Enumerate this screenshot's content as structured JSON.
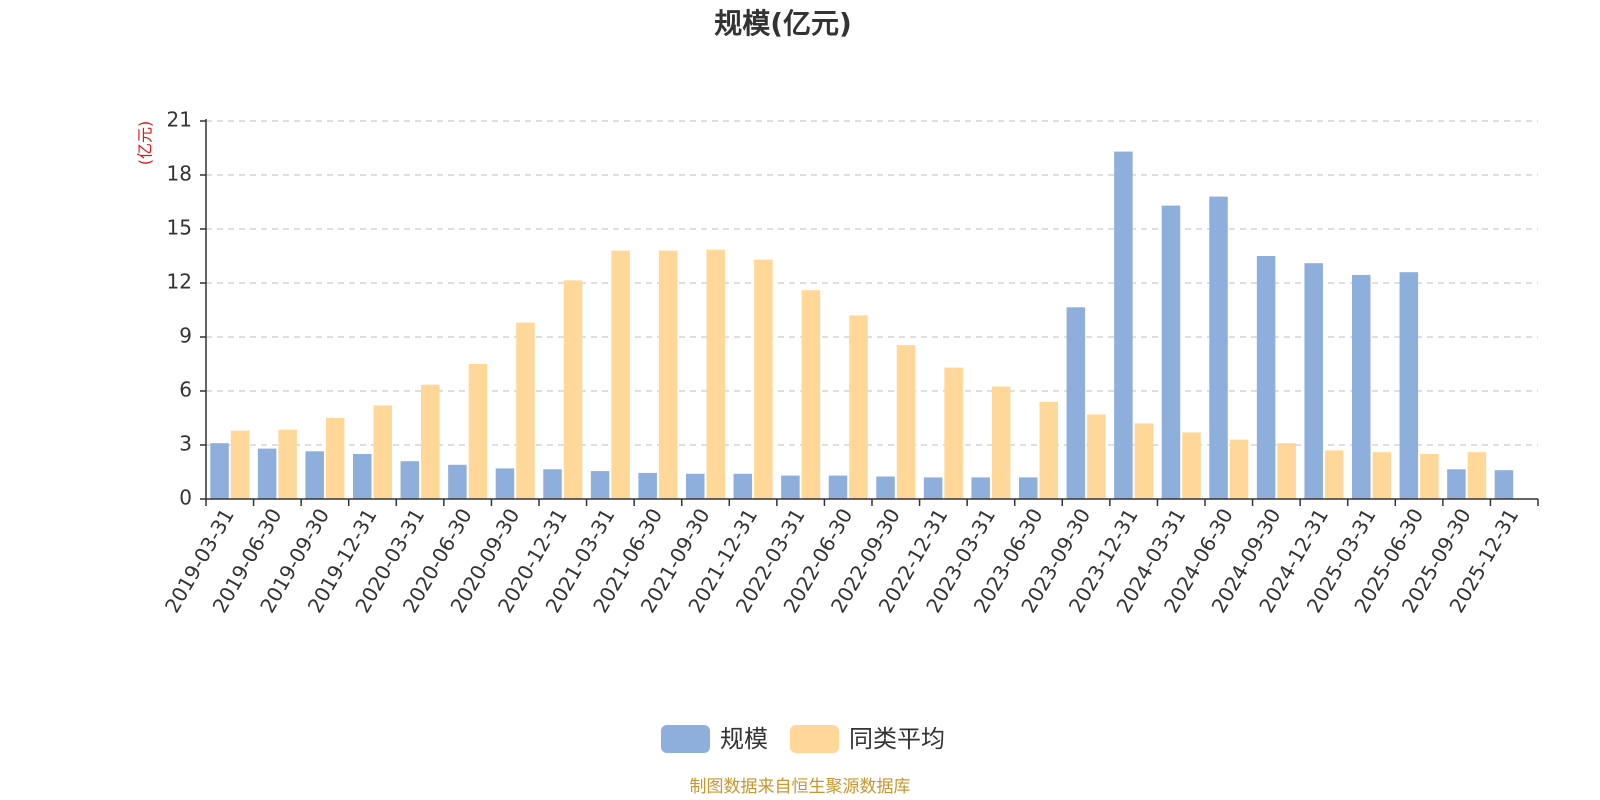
{
  "chart_data": {
    "type": "bar",
    "title": "规模(亿元)",
    "ylabel": "(亿元)",
    "xlabel": "",
    "ylim": [
      0,
      21
    ],
    "yticks": [
      0,
      3,
      6,
      9,
      12,
      15,
      18,
      21
    ],
    "grid": true,
    "legend_position": "bottom",
    "categories": [
      "2019-03-31",
      "2019-06-30",
      "2019-09-30",
      "2019-12-31",
      "2020-03-31",
      "2020-06-30",
      "2020-09-30",
      "2020-12-31",
      "2021-03-31",
      "2021-06-30",
      "2021-09-30",
      "2021-12-31",
      "2022-03-31",
      "2022-06-30",
      "2022-09-30",
      "2022-12-31",
      "2023-03-31",
      "2023-06-30",
      "2023-09-30",
      "2023-12-31",
      "2024-03-31",
      "2024-06-30",
      "2024-09-30",
      "2024-12-31",
      "2025-03-31",
      "2025-06-30",
      "2025-09-30",
      "2025-12-31"
    ],
    "series": [
      {
        "name": "规模",
        "color": "#8eaedb",
        "values": [
          3.1,
          2.8,
          2.65,
          2.5,
          2.1,
          1.9,
          1.7,
          1.65,
          1.55,
          1.45,
          1.4,
          1.4,
          1.3,
          1.3,
          1.25,
          1.2,
          1.2,
          1.2,
          10.65,
          19.3,
          16.3,
          16.8,
          13.5,
          13.1,
          12.45,
          12.6,
          1.65,
          1.6
        ]
      },
      {
        "name": "同类平均",
        "color": "#ffd899",
        "values": [
          3.8,
          3.85,
          4.5,
          5.2,
          6.35,
          7.5,
          9.8,
          12.15,
          13.8,
          13.8,
          13.85,
          13.3,
          11.6,
          10.2,
          8.55,
          7.3,
          6.25,
          5.4,
          4.7,
          4.2,
          3.7,
          3.3,
          3.1,
          2.7,
          2.6,
          2.5,
          2.6,
          null
        ]
      }
    ]
  },
  "footer": {
    "source_text": "制图数据来自恒生聚源数据库"
  }
}
